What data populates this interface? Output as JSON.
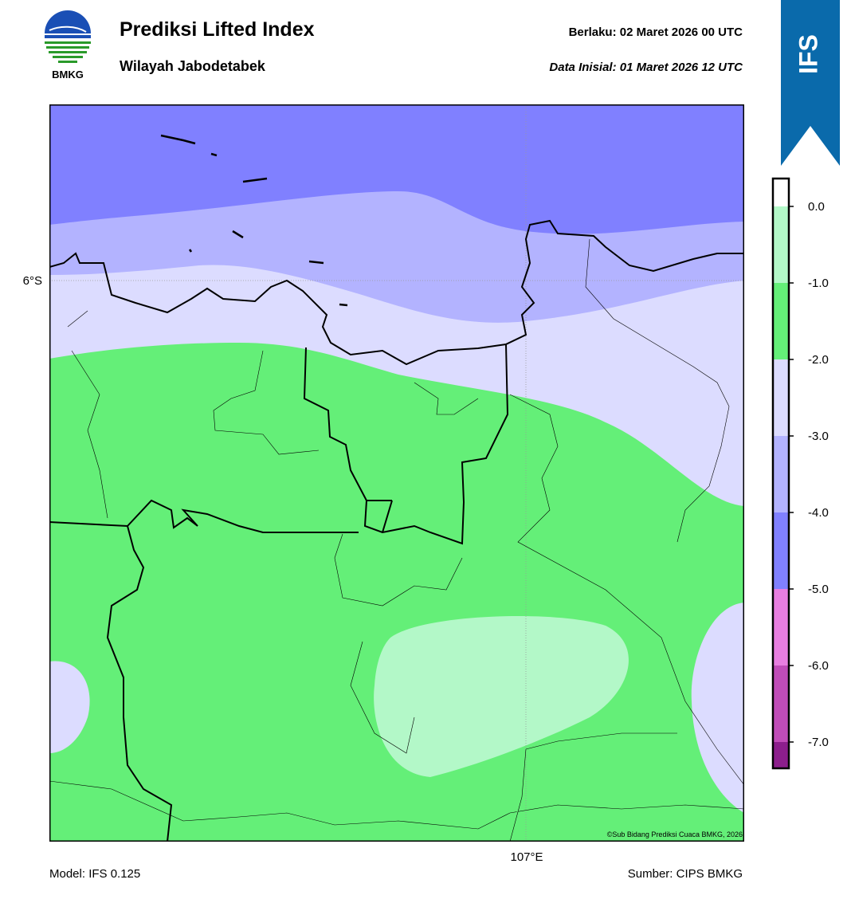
{
  "header": {
    "logo_text": "BMKG",
    "title": "Prediksi Lifted Index",
    "subtitle": "Wilayah Jabodetabek",
    "valid": "Berlaku:  02 Maret 2026 00 UTC",
    "initial": "Data Inisial:  01 Maret 2026 12 UTC"
  },
  "badge": "IFS",
  "map": {
    "lat_label": "6°S",
    "lon_label": "107°E",
    "credit": "©Sub Bidang Prediksi Cuaca BMKG, 2026"
  },
  "colorbar": {
    "ticks": [
      {
        "value": 0,
        "label": "0.0"
      },
      {
        "value": -1,
        "label": "-1.0"
      },
      {
        "value": -2,
        "label": "-2.0"
      },
      {
        "value": -3,
        "label": "-3.0"
      },
      {
        "value": -4,
        "label": "-4.0"
      },
      {
        "value": -5,
        "label": "-5.0"
      },
      {
        "value": -6,
        "label": "-6.0"
      },
      {
        "value": -7,
        "label": "-7.0"
      }
    ],
    "colors": [
      "#ffffff",
      "#b3f8c8",
      "#64ef78",
      "#dcdcff",
      "#b3b3ff",
      "#8080ff",
      "#e87ee0",
      "#c04cb8",
      "#8c1e8c"
    ]
  },
  "footer": {
    "model": "Model: IFS 0.125",
    "source": "Sumber: CIPS BMKG"
  }
}
